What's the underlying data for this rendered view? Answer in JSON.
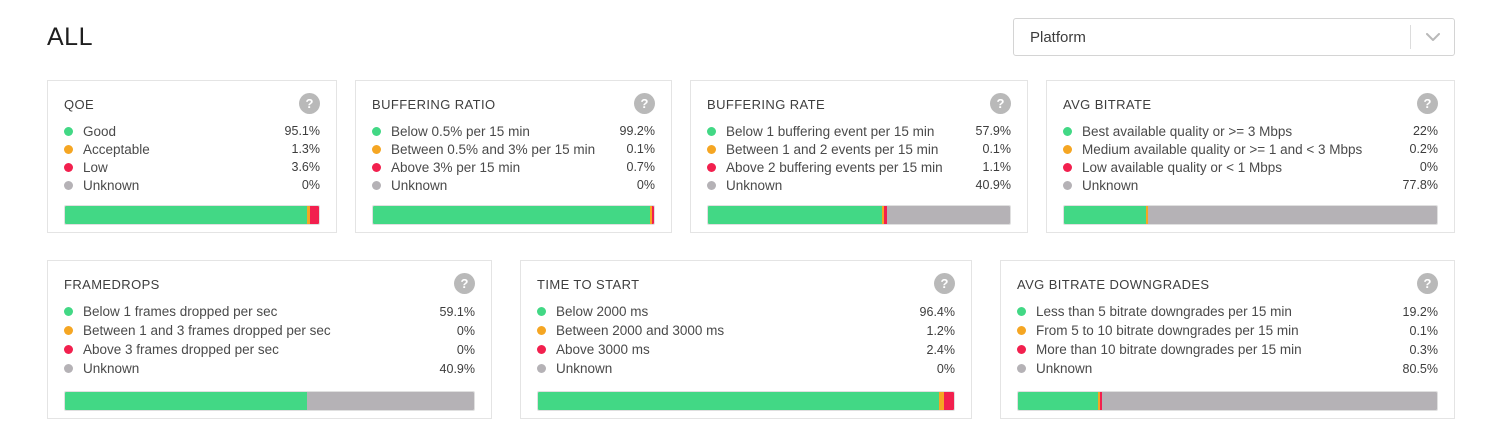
{
  "page": {
    "title": "ALL"
  },
  "filter": {
    "label": "Platform"
  },
  "icons": {
    "help": "?",
    "chevron": "chevron-down"
  },
  "colors": {
    "green": "#42d885",
    "orange": "#f5a623",
    "red": "#f2204e",
    "gray": "#b5b2b6"
  },
  "cards": [
    {
      "row": 1,
      "title": "QOE",
      "legend": [
        {
          "label": "Good",
          "value": "95.1%",
          "pct": 95.1,
          "color": "green"
        },
        {
          "label": "Acceptable",
          "value": "1.3%",
          "pct": 1.3,
          "color": "orange"
        },
        {
          "label": "Low",
          "value": "3.6%",
          "pct": 3.6,
          "color": "red"
        },
        {
          "label": "Unknown",
          "value": "0%",
          "pct": 0,
          "color": "gray"
        }
      ]
    },
    {
      "row": 1,
      "title": "BUFFERING RATIO",
      "legend": [
        {
          "label": "Below 0.5% per 15 min",
          "value": "99.2%",
          "pct": 99.2,
          "color": "green"
        },
        {
          "label": "Between 0.5% and 3% per 15 min",
          "value": "0.1%",
          "pct": 0.1,
          "color": "orange"
        },
        {
          "label": "Above 3% per 15 min",
          "value": "0.7%",
          "pct": 0.7,
          "color": "red"
        },
        {
          "label": "Unknown",
          "value": "0%",
          "pct": 0,
          "color": "gray"
        }
      ]
    },
    {
      "row": 1,
      "title": "BUFFERING RATE",
      "legend": [
        {
          "label": "Below 1 buffering event per 15 min",
          "value": "57.9%",
          "pct": 57.9,
          "color": "green"
        },
        {
          "label": "Between 1 and 2 events per 15 min",
          "value": "0.1%",
          "pct": 0.1,
          "color": "orange"
        },
        {
          "label": "Above 2 buffering events per 15 min",
          "value": "1.1%",
          "pct": 1.1,
          "color": "red"
        },
        {
          "label": "Unknown",
          "value": "40.9%",
          "pct": 40.9,
          "color": "gray"
        }
      ]
    },
    {
      "row": 1,
      "title": "AVG BITRATE",
      "legend": [
        {
          "label": "Best available quality or >= 3 Mbps",
          "value": "22%",
          "pct": 22,
          "color": "green"
        },
        {
          "label": "Medium available quality or >= 1 and < 3 Mbps",
          "value": "0.2%",
          "pct": 0.2,
          "color": "orange"
        },
        {
          "label": "Low available quality or < 1 Mbps",
          "value": "0%",
          "pct": 0,
          "color": "red"
        },
        {
          "label": "Unknown",
          "value": "77.8%",
          "pct": 77.8,
          "color": "gray"
        }
      ]
    },
    {
      "row": 2,
      "title": "FRAMEDROPS",
      "legend": [
        {
          "label": "Below 1 frames dropped per sec",
          "value": "59.1%",
          "pct": 59.1,
          "color": "green"
        },
        {
          "label": "Between 1 and 3 frames dropped per sec",
          "value": "0%",
          "pct": 0,
          "color": "orange"
        },
        {
          "label": "Above 3 frames dropped per sec",
          "value": "0%",
          "pct": 0,
          "color": "red"
        },
        {
          "label": "Unknown",
          "value": "40.9%",
          "pct": 40.9,
          "color": "gray"
        }
      ]
    },
    {
      "row": 2,
      "title": "TIME TO START",
      "legend": [
        {
          "label": "Below 2000 ms",
          "value": "96.4%",
          "pct": 96.4,
          "color": "green"
        },
        {
          "label": "Between 2000 and 3000 ms",
          "value": "1.2%",
          "pct": 1.2,
          "color": "orange"
        },
        {
          "label": "Above 3000 ms",
          "value": "2.4%",
          "pct": 2.4,
          "color": "red"
        },
        {
          "label": "Unknown",
          "value": "0%",
          "pct": 0,
          "color": "gray"
        }
      ]
    },
    {
      "row": 2,
      "title": "AVG BITRATE DOWNGRADES",
      "legend": [
        {
          "label": "Less than 5 bitrate downgrades per 15 min",
          "value": "19.2%",
          "pct": 19.2,
          "color": "green"
        },
        {
          "label": "From 5 to 10 bitrate downgrades per 15 min",
          "value": "0.1%",
          "pct": 0.1,
          "color": "orange"
        },
        {
          "label": "More than 10 bitrate downgrades per 15 min",
          "value": "0.3%",
          "pct": 0.3,
          "color": "red"
        },
        {
          "label": "Unknown",
          "value": "80.5%",
          "pct": 80.5,
          "color": "gray"
        }
      ]
    }
  ]
}
